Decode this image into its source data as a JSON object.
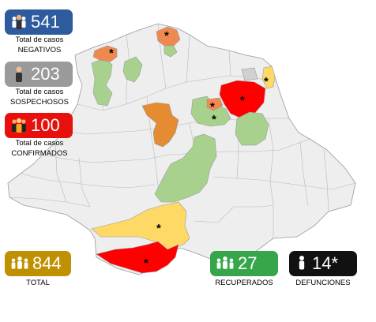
{
  "colors": {
    "negativos": "#2e5a9e",
    "sospechosos": "#9a9a9a",
    "confirmados": "#e8100d",
    "total": "#bf9000",
    "recuperados": "#37a64a",
    "defunciones": "#111111",
    "map_base": "#eeeeee",
    "map_border": "#9a9a9a",
    "region_red": "#ff0000",
    "region_orange": "#e58b31",
    "region_coral": "#f0894f",
    "region_yellow": "#ffd966",
    "region_green": "#a9d18e",
    "region_darkgray": "#d0d0d0"
  },
  "stats": {
    "negativos": {
      "value": "541",
      "label_1": "Total de casos",
      "label_2": "NEGATIVOS",
      "icon": "people-icon"
    },
    "sospechosos": {
      "value": "203",
      "label_1": "Total de casos",
      "label_2": "SOSPECHOSOS",
      "icon": "person-icon"
    },
    "confirmados": {
      "value": "100",
      "label_1": "Total de casos",
      "label_2": "CONFIRMADOS",
      "icon": "people-icon"
    },
    "total": {
      "value": "844",
      "label": "TOTAL",
      "icon": "group-icon"
    },
    "recuperados": {
      "value": "27",
      "label": "RECUPERADOS",
      "icon": "group-icon"
    },
    "defunciones": {
      "value": "14*",
      "label": "DEFUNCIONES",
      "icon": "person-icon"
    }
  },
  "map": {
    "marker": "*"
  }
}
